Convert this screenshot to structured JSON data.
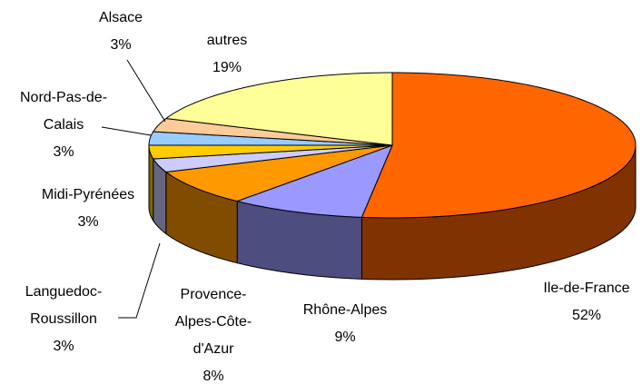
{
  "chart_data": {
    "type": "pie3d",
    "categories": [
      "Ile-de-France",
      "Rhône-Alpes",
      "Provence-Alpes-Côte-d'Azur",
      "Languedoc-Roussillon",
      "Midi-Pyrénées",
      "Nord-Pas-de-Calais",
      "Alsace",
      "autres"
    ],
    "values": [
      52,
      9,
      8,
      3,
      3,
      3,
      3,
      19
    ],
    "value_labels": [
      "52%",
      "9%",
      "8%",
      "3%",
      "3%",
      "3%",
      "3%",
      "19%"
    ],
    "colors": [
      "#ff6600",
      "#9999ff",
      "#ff9900",
      "#ccccff",
      "#ffcc00",
      "#99ccff",
      "#ffcc99",
      "#ffff99"
    ]
  }
}
